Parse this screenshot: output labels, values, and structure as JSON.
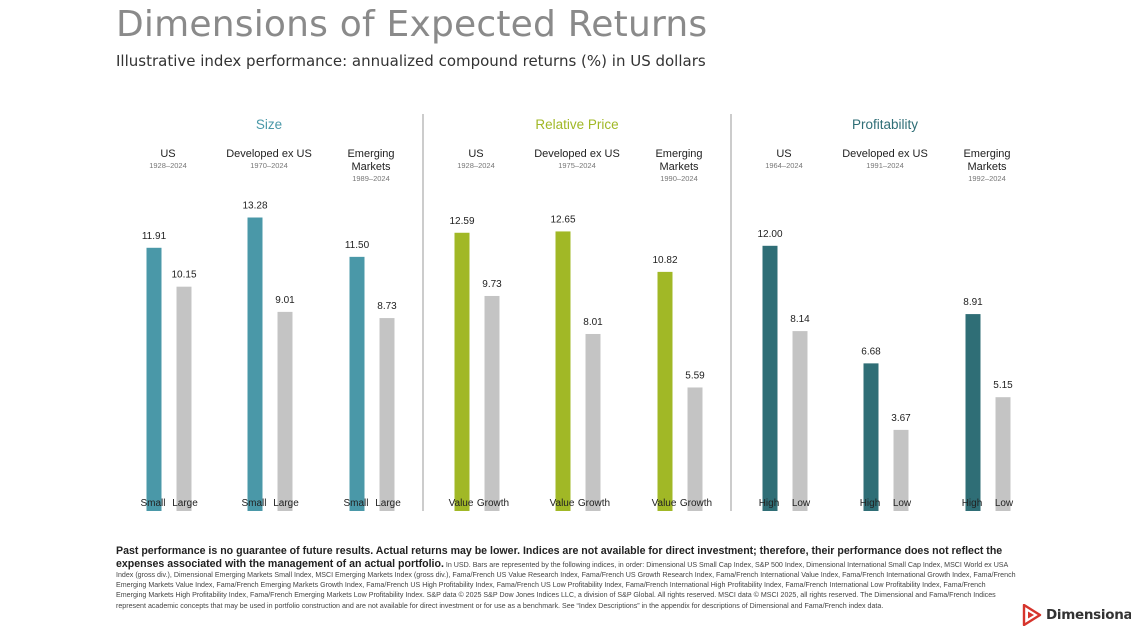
{
  "title": "Dimensions of Expected Returns",
  "subtitle": "Illustrative index performance: annualized compound returns (%) in US dollars",
  "colors": {
    "size": "#4a98a8",
    "relative_price": "#a1b826",
    "profitability": "#2f6e76",
    "comparison": "#c4c4c4",
    "divider": "#9a9a9a"
  },
  "chart_data": {
    "type": "bar",
    "ylim": [
      0,
      16
    ],
    "panels": [
      {
        "name": "Size",
        "color_key": "size",
        "groups": [
          {
            "region": "US",
            "period": "1928–2024",
            "labels": [
              "Small",
              "Large"
            ],
            "values": [
              11.91,
              10.15
            ]
          },
          {
            "region": "Developed ex US",
            "period": "1970–2024",
            "labels": [
              "Small",
              "Large"
            ],
            "values": [
              13.28,
              9.01
            ]
          },
          {
            "region": "Emerging Markets",
            "period": "1989–2024",
            "labels": [
              "Small",
              "Large"
            ],
            "values": [
              11.5,
              8.73
            ]
          }
        ]
      },
      {
        "name": "Relative Price",
        "color_key": "relative_price",
        "groups": [
          {
            "region": "US",
            "period": "1928–2024",
            "labels": [
              "Value",
              "Growth"
            ],
            "values": [
              12.59,
              9.73
            ]
          },
          {
            "region": "Developed ex US",
            "period": "1975–2024",
            "labels": [
              "Value",
              "Growth"
            ],
            "values": [
              12.65,
              8.01
            ]
          },
          {
            "region": "Emerging Markets",
            "period": "1990–2024",
            "labels": [
              "Value",
              "Growth"
            ],
            "values": [
              10.82,
              5.59
            ]
          }
        ]
      },
      {
        "name": "Profitability",
        "color_key": "profitability",
        "groups": [
          {
            "region": "US",
            "period": "1964–2024",
            "labels": [
              "High",
              "Low"
            ],
            "values": [
              12.0,
              8.14
            ]
          },
          {
            "region": "Developed ex US",
            "period": "1991–2024",
            "labels": [
              "High",
              "Low"
            ],
            "values": [
              6.68,
              3.67
            ]
          },
          {
            "region": "Emerging Markets",
            "period": "1992–2024",
            "labels": [
              "High",
              "Low"
            ],
            "values": [
              8.91,
              5.15
            ]
          }
        ]
      }
    ]
  },
  "footnote": {
    "bold": "Past performance is no guarantee of future results. Actual returns may be lower. Indices are not available for direct investment; therefore, their performance does not reflect the expenses associated with the management of an actual portfolio.",
    "text": "In USD. Bars are represented by the following indices, in order: Dimensional US Small Cap Index, S&P 500 Index, Dimensional International Small Cap Index, MSCI World ex USA Index (gross div.), Dimensional Emerging Markets Small Index, MSCI Emerging Markets Index (gross div.), Fama/French US Value Research Index, Fama/French US Growth Research Index, Fama/French International Value Index, Fama/French International Growth Index, Fama/French Emerging Markets Value Index, Fama/French Emerging Markets Growth Index, Fama/French US High Profitability Index, Fama/French US Low Profitability Index, Fama/French International High Profitability Index, Fama/French International Low Profitability Index, Fama/French Emerging Markets High Profitability Index, Fama/French Emerging Markets Low Profitability Index. S&P data © 2025 S&P Dow Jones Indices LLC, a division of S&P Global. All rights reserved. MSCI data © MSCI 2025, all rights reserved. The Dimensional and Fama/French Indices represent academic concepts that may be used in portfolio construction and are not available for direct investment or for use as a benchmark. See “Index Descriptions” in the appendix for descriptions of Dimensional and Fama/French index data."
  },
  "logo": {
    "text": "Dimensional",
    "icon": "dimensional-logo-icon"
  }
}
